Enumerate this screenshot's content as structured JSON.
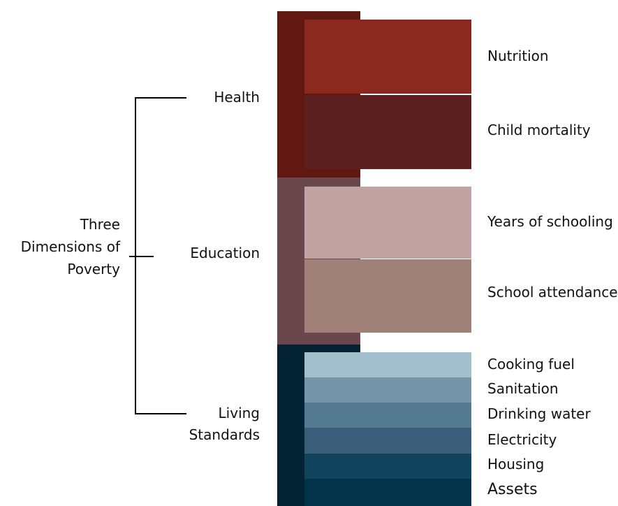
{
  "title": {
    "line1": "Three",
    "line2": "Dimensions of",
    "line3": "Poverty"
  },
  "dimensions": [
    {
      "name": "Health",
      "color": "#601810",
      "indicators": [
        {
          "label": "Nutrition",
          "color": "#8b2820"
        },
        {
          "label": "Child mortality",
          "color": "#5d2020"
        }
      ]
    },
    {
      "name": "Education",
      "color": "#6a474c",
      "indicators": [
        {
          "label": "Years of schooling",
          "color": "#c1a3a3"
        },
        {
          "label": "School attendance",
          "color": "#a08177"
        }
      ]
    },
    {
      "name_line1": "Living",
      "name_line2": "Standards",
      "color": "#032233",
      "indicators": [
        {
          "label": "Cooking fuel",
          "color": "#a4bfcc"
        },
        {
          "label": "Sanitation",
          "color": "#7596a8"
        },
        {
          "label": "Drinking water",
          "color": "#547a91"
        },
        {
          "label": "Electricity",
          "color": "#3a5e79"
        },
        {
          "label": "Housing",
          "color": "#10445d"
        },
        {
          "label": "Assets",
          "color": "#03334a"
        }
      ]
    }
  ]
}
